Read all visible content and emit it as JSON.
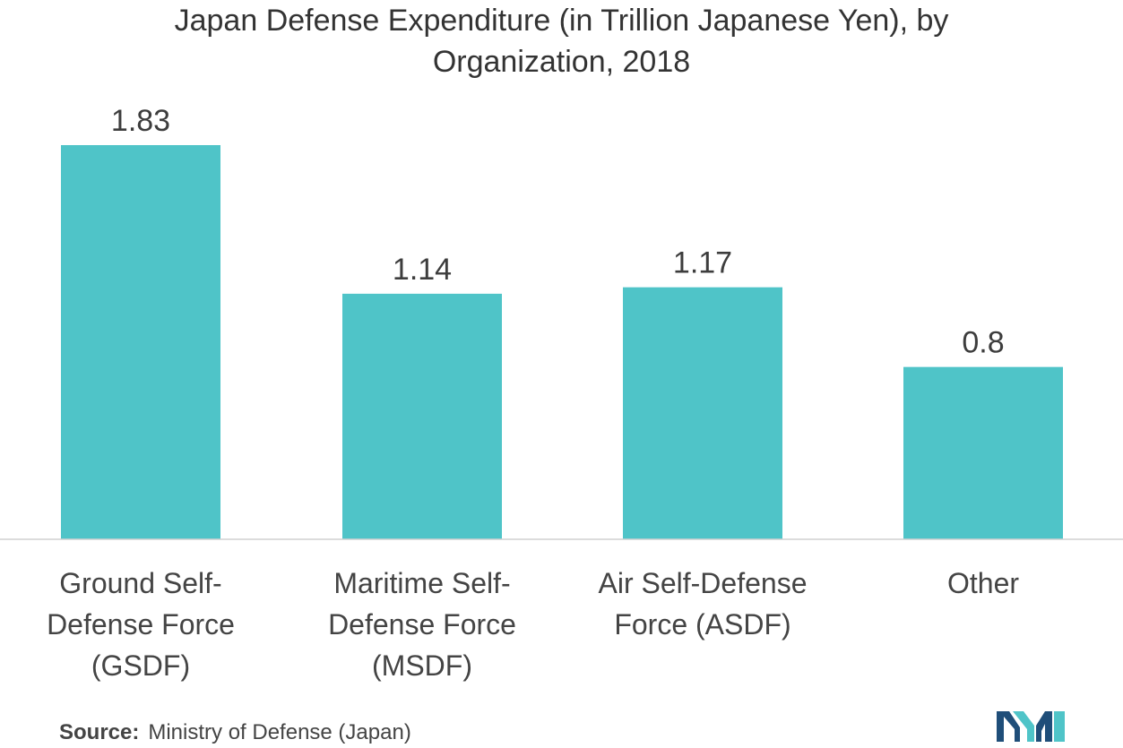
{
  "chart_data": {
    "type": "bar",
    "title": "Japan Defense Expenditure (in Trillion Japanese Yen), by\nOrganization, 2018",
    "categories": [
      "Ground Self-\nDefense Force\n(GSDF)",
      "Maritime Self-\nDefense Force\n(MSDF)",
      "Air Self-Defense\nForce (ASDF)",
      "Other"
    ],
    "values": [
      1.83,
      1.14,
      1.17,
      0.8
    ],
    "data_labels": [
      "1.83",
      "1.14",
      "1.17",
      "0.8"
    ],
    "xlabel": "",
    "ylabel": "",
    "ylim": [
      0,
      2.0
    ],
    "grid": false,
    "legend": "none",
    "bar_color": "#4fc4c8",
    "axis_color": "#d0d0d0"
  },
  "footer": {
    "source_label": "Source:",
    "source_text": "Ministry of Defense (Japan)"
  },
  "logo": {
    "icon": "mordor-intelligence-logo-icon",
    "colors": [
      "#1f4e79",
      "#4fc4c8"
    ]
  }
}
